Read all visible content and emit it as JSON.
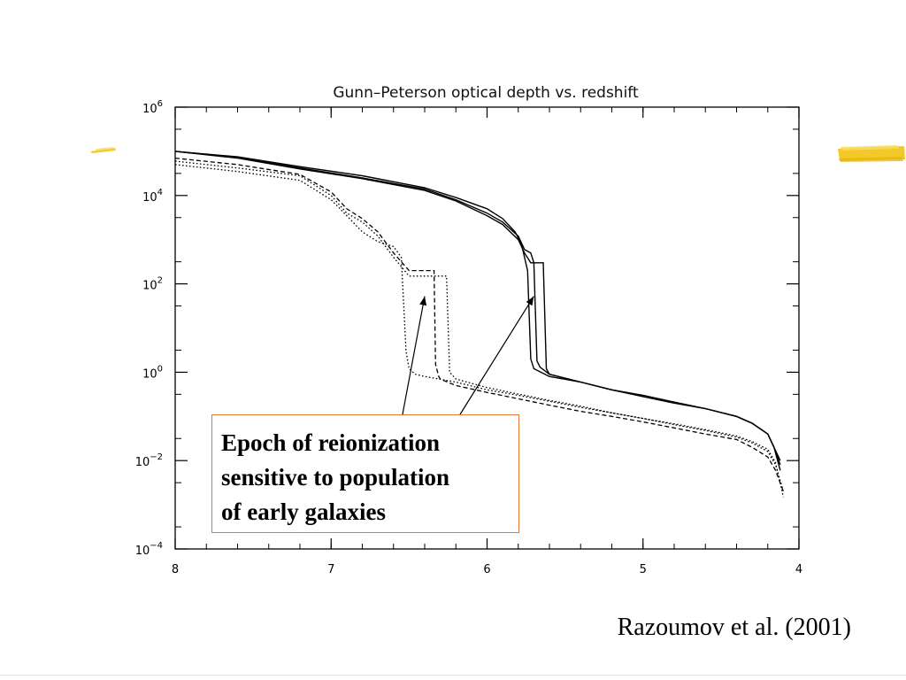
{
  "chart_data": {
    "type": "line",
    "title": "Gunn–Peterson optical depth vs. redshift",
    "xlabel": "",
    "ylabel": "",
    "xlim": [
      8,
      4
    ],
    "ylim": [
      0.0001,
      1000000
    ],
    "yscale": "log",
    "x_ticks": [
      {
        "value": 8,
        "label": "8"
      },
      {
        "value": 7,
        "label": "7"
      },
      {
        "value": 6,
        "label": "6"
      },
      {
        "value": 5,
        "label": "5"
      },
      {
        "value": 4,
        "label": "4"
      }
    ],
    "y_ticks": [
      {
        "value": 1000000,
        "base": "10",
        "exp": "6"
      },
      {
        "value": 10000,
        "base": "10",
        "exp": "4"
      },
      {
        "value": 100,
        "base": "10",
        "exp": "2"
      },
      {
        "value": 1,
        "base": "10",
        "exp": "0"
      },
      {
        "value": 0.01,
        "base": "10",
        "exp": "−2"
      },
      {
        "value": 0.0001,
        "base": "10",
        "exp": "−4"
      }
    ],
    "series": [
      {
        "style": "solid",
        "x": [
          8.0,
          7.6,
          7.2,
          6.8,
          6.4,
          6.2,
          6.0,
          5.9,
          5.82,
          5.78,
          5.74,
          5.72,
          5.7,
          5.6,
          5.4,
          5.2,
          5.0,
          4.8,
          4.6,
          4.4,
          4.3,
          4.2,
          4.16,
          4.12
        ],
        "y": [
          100000,
          75000,
          45000,
          28000,
          15000,
          9000,
          5000,
          3000,
          1500,
          800,
          200,
          2,
          1.2,
          0.8,
          0.6,
          0.4,
          0.28,
          0.2,
          0.15,
          0.1,
          0.07,
          0.04,
          0.02,
          0.006
        ]
      },
      {
        "style": "solid",
        "x": [
          8.0,
          7.6,
          7.2,
          6.8,
          6.4,
          6.2,
          6.0,
          5.9,
          5.8,
          5.76,
          5.72,
          5.7,
          5.68,
          5.66,
          5.6,
          5.4,
          5.2,
          5.0,
          4.8,
          4.6,
          4.4,
          4.3,
          4.2,
          4.16,
          4.12
        ],
        "y": [
          100000,
          72000,
          42000,
          25000,
          14000,
          8000,
          4000,
          2500,
          1200,
          600,
          500,
          300,
          1.8,
          1.3,
          0.9,
          0.6,
          0.4,
          0.3,
          0.21,
          0.15,
          0.1,
          0.07,
          0.04,
          0.02,
          0.008
        ]
      },
      {
        "style": "solid",
        "x": [
          8.0,
          7.6,
          7.2,
          6.8,
          6.4,
          6.2,
          6.0,
          5.9,
          5.8,
          5.76,
          5.72,
          5.7,
          5.68,
          5.66,
          5.64,
          5.62,
          5.6,
          5.4,
          5.2,
          5.0,
          4.8,
          4.6,
          4.4,
          4.3,
          4.2,
          4.16,
          4.12
        ],
        "y": [
          100000,
          70000,
          40000,
          24000,
          13000,
          7500,
          3500,
          2200,
          1000,
          500,
          300,
          300,
          300,
          300,
          300,
          1.2,
          0.9,
          0.6,
          0.4,
          0.3,
          0.21,
          0.15,
          0.1,
          0.07,
          0.04,
          0.02,
          0.01
        ]
      },
      {
        "style": "dashed",
        "x": [
          8.0,
          7.6,
          7.2,
          7.0,
          6.9,
          6.8,
          6.7,
          6.6,
          6.5,
          6.45,
          6.42,
          6.4,
          6.38,
          6.36,
          6.34,
          6.33,
          6.31,
          6.3,
          6.2,
          6.0,
          5.8,
          5.6,
          5.4,
          5.2,
          5.0,
          4.8,
          4.6,
          4.4,
          4.3,
          4.2,
          4.15,
          4.1
        ],
        "y": [
          70000,
          50000,
          30000,
          12000,
          5000,
          3000,
          1500,
          500,
          200,
          200,
          200,
          200,
          200,
          200,
          200,
          1.5,
          0.8,
          0.7,
          0.5,
          0.35,
          0.25,
          0.18,
          0.13,
          0.1,
          0.075,
          0.055,
          0.04,
          0.03,
          0.02,
          0.012,
          0.006,
          0.002
        ]
      },
      {
        "style": "dotted",
        "x": [
          8.0,
          7.6,
          7.2,
          7.0,
          6.9,
          6.8,
          6.7,
          6.6,
          6.5,
          6.45,
          6.42,
          6.4,
          6.38,
          6.35,
          6.3,
          6.26,
          6.24,
          6.2,
          6.0,
          5.8,
          5.6,
          5.4,
          5.2,
          5.0,
          4.8,
          4.6,
          4.4,
          4.3,
          4.2,
          4.15,
          4.1
        ],
        "y": [
          60000,
          42000,
          28000,
          10000,
          4000,
          2500,
          1200,
          400,
          150,
          150,
          150,
          150,
          150,
          150,
          150,
          150,
          1.0,
          0.7,
          0.45,
          0.32,
          0.23,
          0.17,
          0.12,
          0.09,
          0.068,
          0.05,
          0.036,
          0.027,
          0.018,
          0.009,
          0.0015
        ]
      },
      {
        "style": "dotted",
        "x": [
          8.0,
          7.6,
          7.2,
          7.0,
          6.9,
          6.8,
          6.7,
          6.6,
          6.55,
          6.52,
          6.5,
          6.46,
          6.4,
          6.2,
          6.0,
          5.8,
          5.6,
          5.4,
          5.2,
          5.0,
          4.8,
          4.6,
          4.4,
          4.3,
          4.2,
          4.15,
          4.1
        ],
        "y": [
          50000,
          35000,
          22000,
          8000,
          3500,
          1500,
          900,
          700,
          400,
          3,
          1.2,
          0.9,
          0.8,
          0.6,
          0.4,
          0.3,
          0.22,
          0.16,
          0.12,
          0.09,
          0.065,
          0.048,
          0.034,
          0.025,
          0.016,
          0.008,
          0.002
        ]
      }
    ],
    "grid": false,
    "legend": "none"
  },
  "annotation": {
    "lines": [
      "Epoch of reionization",
      "sensitive to population",
      "of early galaxies"
    ],
    "arrow_targets": [
      {
        "x": 6.4,
        "y": 100
      },
      {
        "x": 5.7,
        "y": 100
      }
    ]
  },
  "citation": "Razoumov et al. (2001)",
  "colors": {
    "annotation_border": "#e07a3a",
    "highlighter": "#f2c418",
    "ink": "#000000"
  }
}
